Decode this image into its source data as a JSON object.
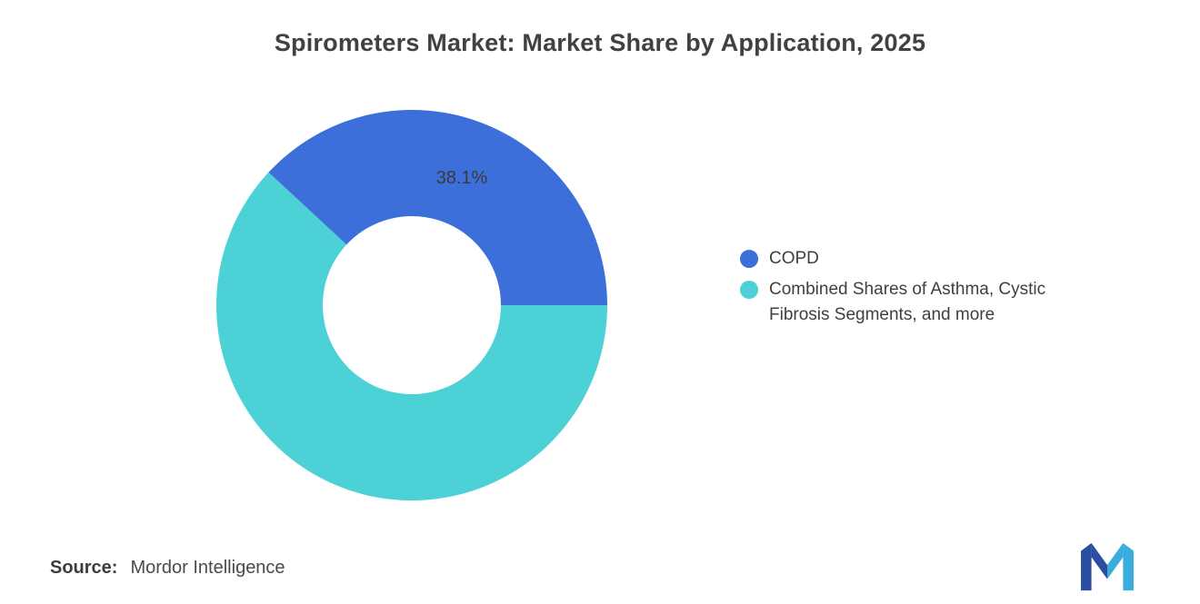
{
  "title": "Spirometers Market: Market Share by Application, 2025",
  "chart_data": {
    "type": "pie",
    "subtype": "donut",
    "title": "Spirometers Market: Market Share by Application, 2025",
    "inner_radius_ratio": 0.456,
    "first_segment_ends_at_deg": 0,
    "legend_position": "right",
    "segments": [
      {
        "label": "COPD",
        "value": 38.1,
        "value_label": "38.1%",
        "color": "#3D6FDA"
      },
      {
        "label": "Combined Shares of Asthma, Cystic Fibrosis Segments, and more",
        "value": 61.9,
        "value_label": "",
        "color": "#4CD1D6"
      }
    ]
  },
  "legend": {
    "items": [
      {
        "label": "COPD",
        "color": "#3D6FDA"
      },
      {
        "label": "Combined Shares of Asthma, Cystic Fibrosis Segments, and more",
        "color": "#4CD1D6"
      }
    ]
  },
  "footer": {
    "source_label": "Source:",
    "source_value": "Mordor Intelligence"
  },
  "logo": {
    "name": "mordor-intelligence-logo",
    "colors": [
      "#2B4EA0",
      "#39AEDD"
    ]
  }
}
